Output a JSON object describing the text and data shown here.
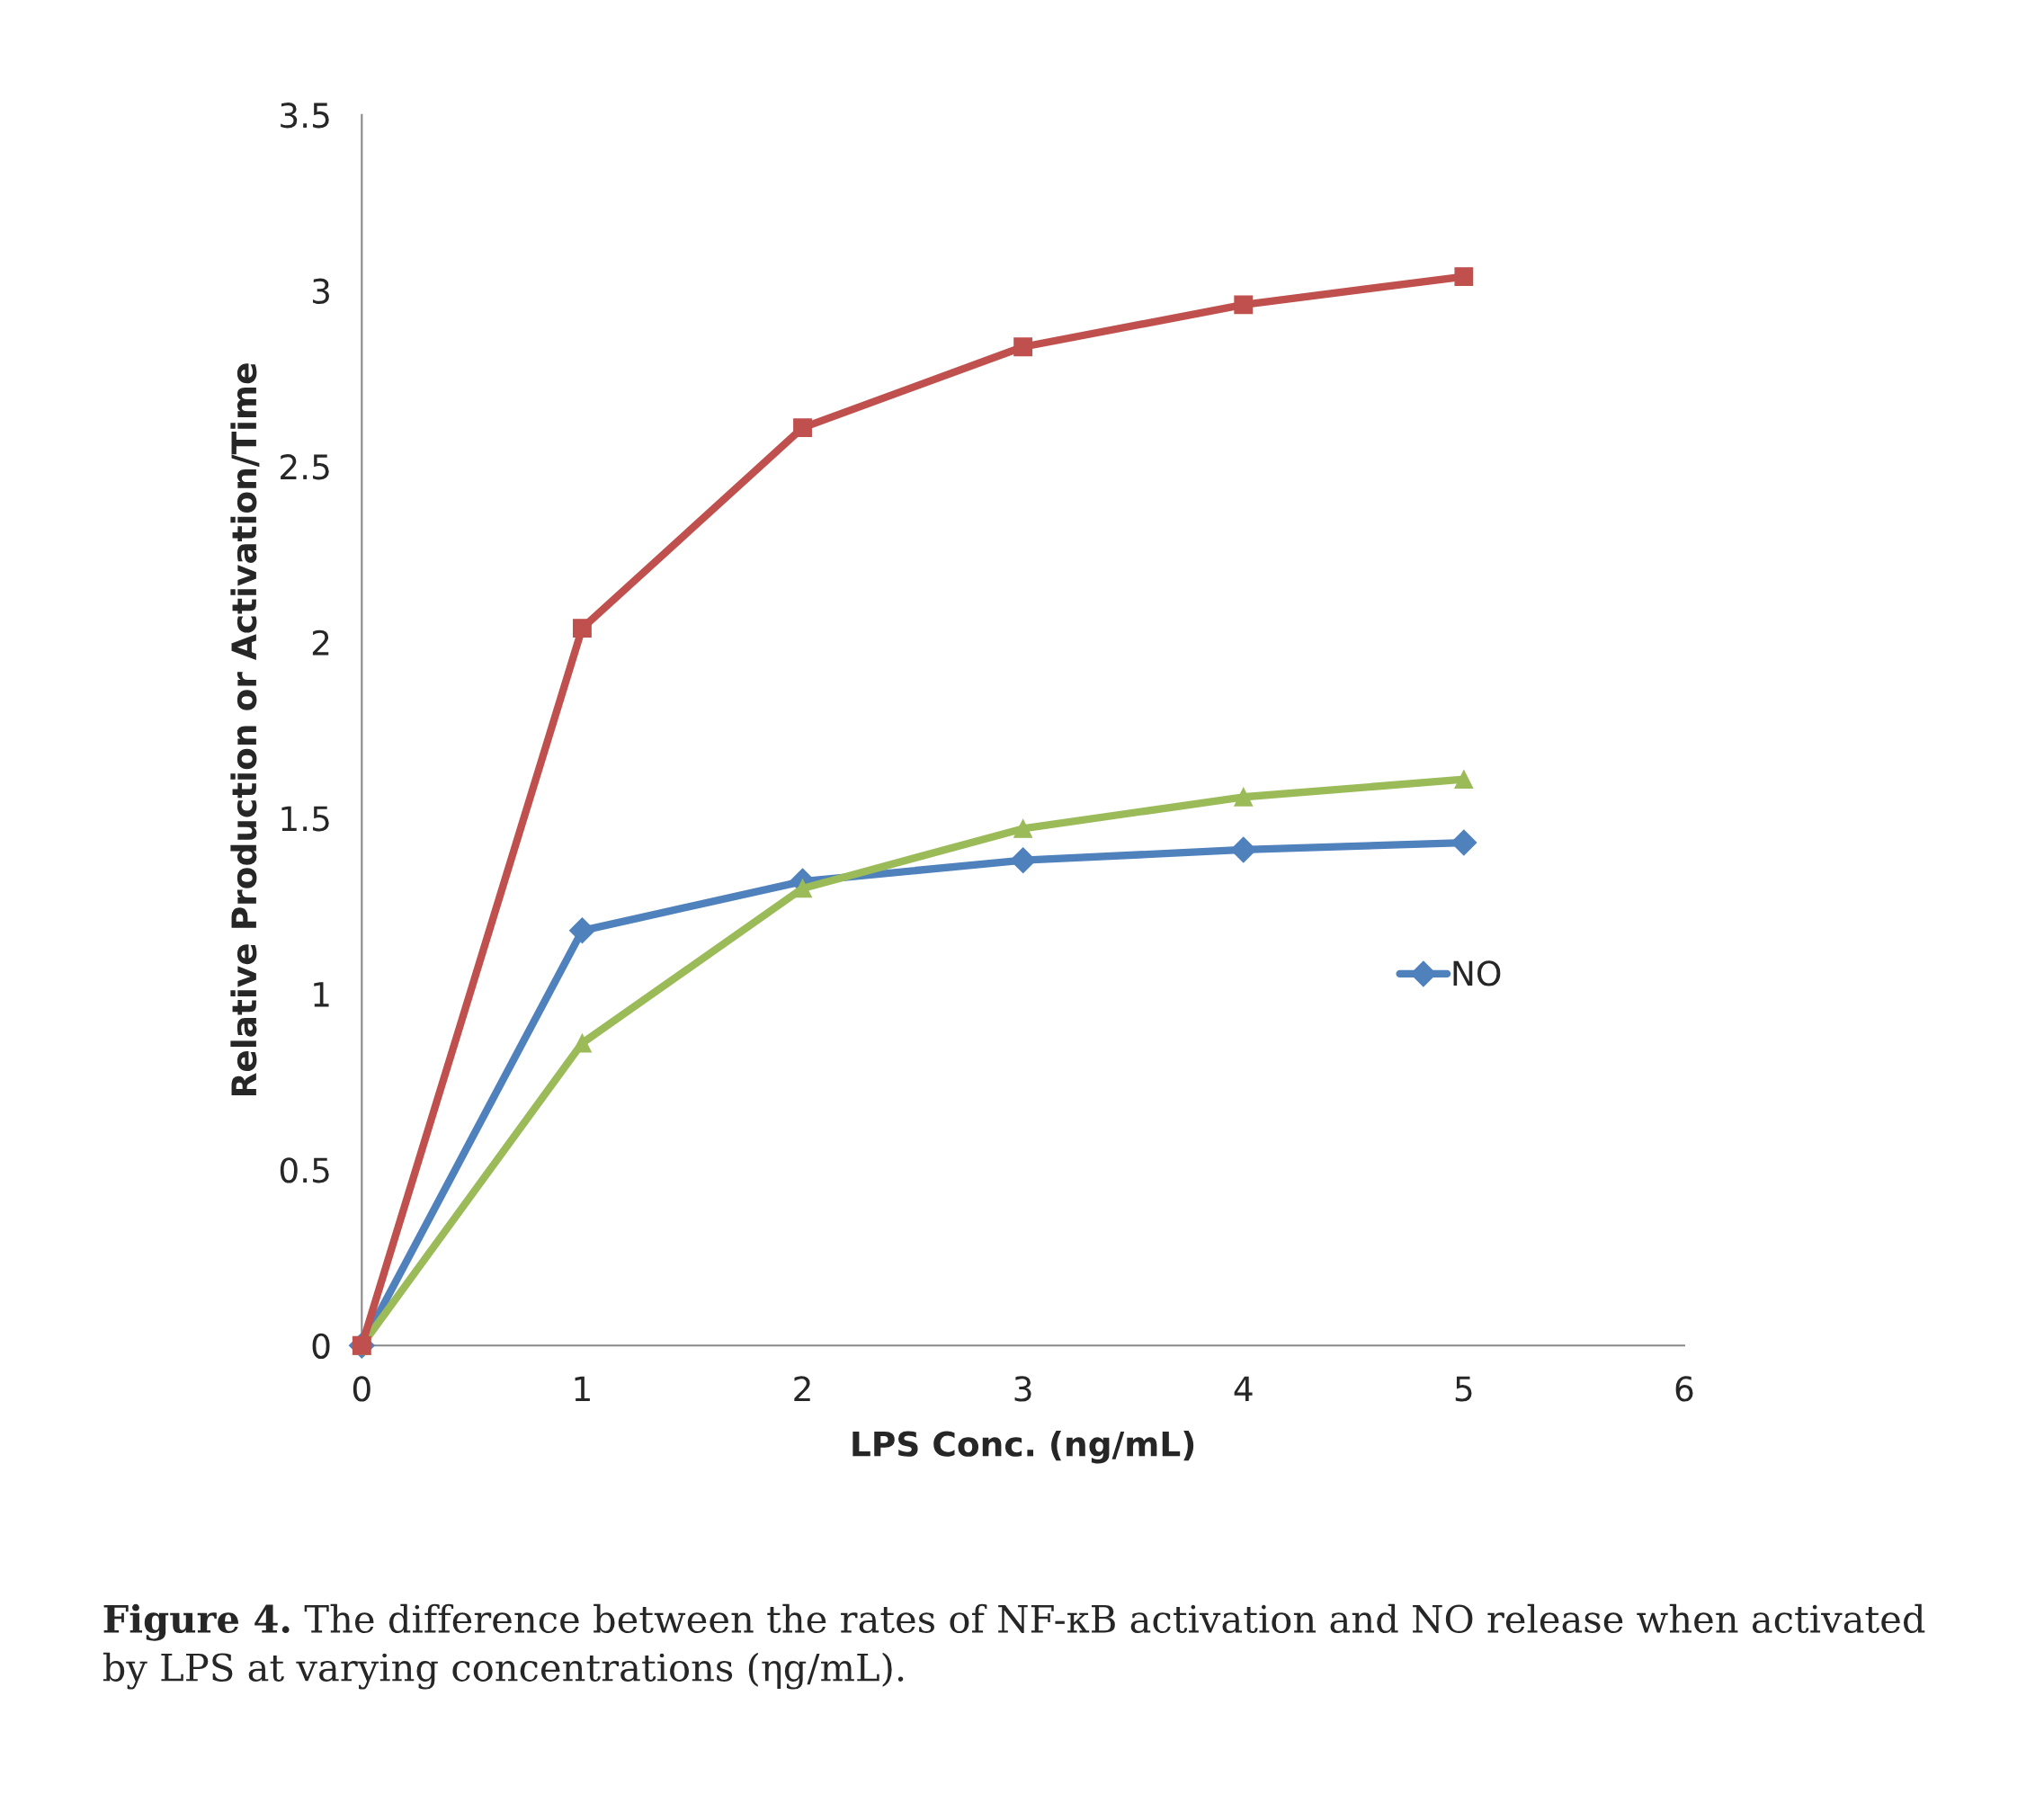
{
  "chart_data": {
    "type": "line",
    "xlabel": "LPS Conc. (ng/mL)",
    "ylabel": "Relative Production or Activation/Time",
    "x": [
      0,
      1,
      2,
      3,
      4,
      5
    ],
    "series": [
      {
        "color": "#c0504d",
        "values": [
          0,
          2.04,
          2.61,
          2.84,
          2.96,
          3.04
        ],
        "marker": "square"
      },
      {
        "color": "#9bbb59",
        "values": [
          0,
          0.86,
          1.3,
          1.47,
          1.56,
          1.61
        ],
        "marker": "triangle"
      },
      {
        "name": "NO",
        "color": "#4f81bd",
        "values": [
          0,
          1.18,
          1.32,
          1.38,
          1.41,
          1.43
        ],
        "marker": "diamond"
      }
    ],
    "xlim": [
      0,
      6
    ],
    "xticks": [
      0,
      1,
      2,
      3,
      4,
      5,
      6
    ],
    "ylim": [
      0,
      3.5
    ],
    "yticks": [
      0,
      0.5,
      1,
      1.5,
      2,
      2.5,
      3,
      3.5
    ],
    "grid": false,
    "legend": "center right",
    "annotations": [
      "Figure 4.",
      "The difference between the rates of NF-κB activation and NO release when activated by LPS at varying concentrations (ηg/mL)."
    ]
  }
}
